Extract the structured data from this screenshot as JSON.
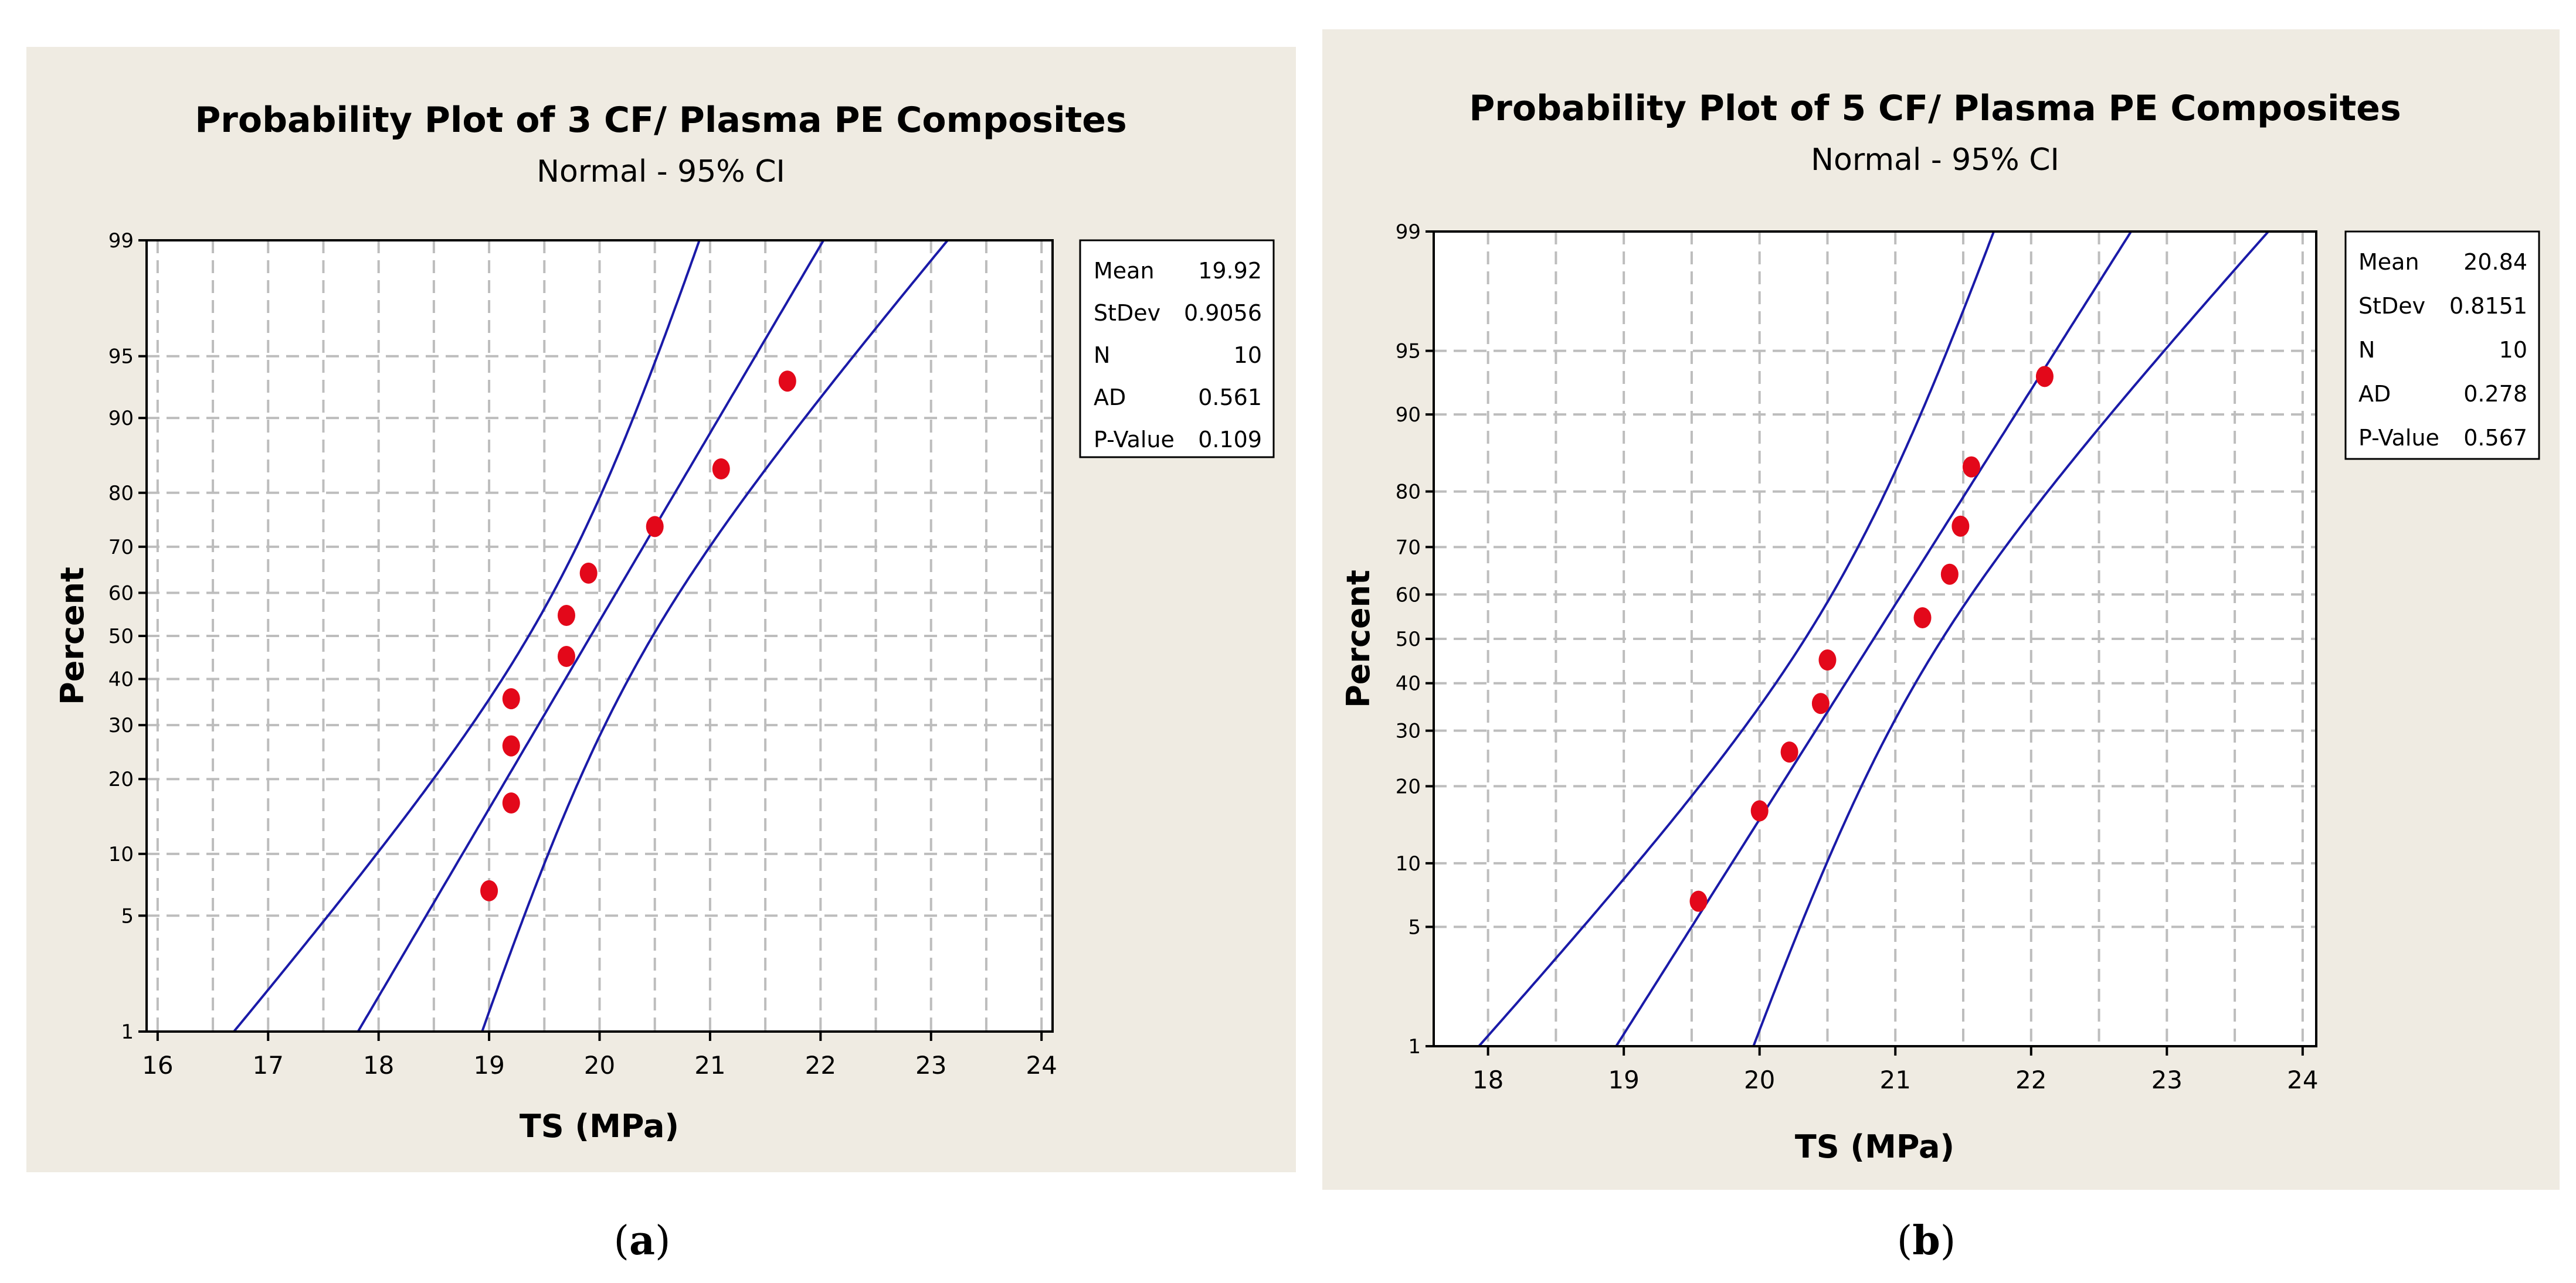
{
  "colors": {
    "panel_bg": "#efebe2",
    "plot_bg": "#ffffff",
    "grid": "#bdbdbd",
    "ci_line": "#1a1aa8",
    "point": "#e3081a"
  },
  "chart_data": [
    {
      "type": "scatter",
      "title": "Probability Plot of 3 CF/ Plasma PE Composites",
      "subtitle": "Normal - 95% CI",
      "xlabel": "TS (MPa)",
      "ylabel": "Percent",
      "xlim": [
        15.9,
        24.1
      ],
      "xticks": [
        16,
        17,
        18,
        19,
        20,
        21,
        22,
        23,
        24
      ],
      "xtick_labels": [
        "16",
        "17",
        "18",
        "19",
        "20",
        "21",
        "22",
        "23",
        "24"
      ],
      "ylim": [
        1,
        99
      ],
      "yticks": [
        1,
        5,
        10,
        20,
        30,
        40,
        50,
        60,
        70,
        80,
        90,
        95,
        99
      ],
      "ytick_labels": [
        "1",
        "5",
        "10",
        "20",
        "30",
        "40",
        "50",
        "60",
        "70",
        "80",
        "90",
        "95",
        "99"
      ],
      "grid": true,
      "points": {
        "x": [
          19.0,
          19.2,
          19.2,
          19.2,
          19.7,
          19.7,
          19.9,
          20.5,
          21.1,
          21.7
        ],
        "y": [
          6.7,
          16.3,
          25.9,
          35.6,
          45.2,
          54.8,
          64.4,
          74.0,
          83.7,
          93.3
        ]
      },
      "fit": {
        "mean": 19.92,
        "stdev": 0.9056
      },
      "ci_level": 95,
      "legend": {
        "position": "right",
        "rows": [
          {
            "label": "Mean",
            "value": "19.92"
          },
          {
            "label": "StDev",
            "value": "0.9056"
          },
          {
            "label": "N",
            "value": "10"
          },
          {
            "label": "AD",
            "value": "0.561"
          },
          {
            "label": "P-Value",
            "value": "0.109"
          }
        ]
      },
      "caption": "a"
    },
    {
      "type": "scatter",
      "title": "Probability Plot of 5 CF/ Plasma PE Composites",
      "subtitle": "Normal - 95% CI",
      "xlabel": "TS (MPa)",
      "ylabel": "Percent",
      "xlim": [
        17.6,
        24.1
      ],
      "xticks": [
        18,
        19,
        20,
        21,
        22,
        23,
        24
      ],
      "xtick_labels": [
        "18",
        "19",
        "20",
        "21",
        "22",
        "23",
        "24"
      ],
      "ylim": [
        1,
        99
      ],
      "yticks": [
        1,
        5,
        10,
        20,
        30,
        40,
        50,
        60,
        70,
        80,
        90,
        95,
        99
      ],
      "ytick_labels": [
        "1",
        "5",
        "10",
        "20",
        "30",
        "40",
        "50",
        "60",
        "70",
        "80",
        "90",
        "95",
        "99"
      ],
      "grid": true,
      "points": {
        "x": [
          19.55,
          20.0,
          20.22,
          20.45,
          20.5,
          21.2,
          21.4,
          21.48,
          21.56,
          22.1
        ],
        "y": [
          6.7,
          16.3,
          25.9,
          35.6,
          45.2,
          54.8,
          64.4,
          74.0,
          83.7,
          93.3
        ]
      },
      "fit": {
        "mean": 20.84,
        "stdev": 0.8151
      },
      "ci_level": 95,
      "legend": {
        "position": "right",
        "rows": [
          {
            "label": "Mean",
            "value": "20.84"
          },
          {
            "label": "StDev",
            "value": "0.8151"
          },
          {
            "label": "N",
            "value": "10"
          },
          {
            "label": "AD",
            "value": "0.278"
          },
          {
            "label": "P-Value",
            "value": "0.567"
          }
        ]
      },
      "caption": "b"
    }
  ]
}
